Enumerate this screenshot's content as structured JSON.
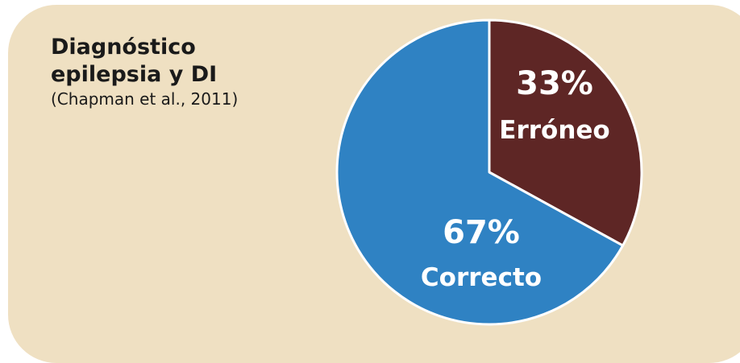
{
  "slide": {
    "title_line1": "Diagnóstico",
    "title_line2": "epilepsia y DI",
    "citation": "(Chapman et al., 2011)"
  },
  "chart_data": {
    "type": "pie",
    "title": "",
    "slices": [
      {
        "label": "Erróneo",
        "value": 33,
        "display": "33%",
        "color": "#5e2625"
      },
      {
        "label": "Correcto",
        "value": 67,
        "display": "67%",
        "color": "#2f82c3"
      }
    ],
    "start_angle_deg": 0,
    "direction": "clockwise"
  },
  "colors": {
    "card_background": "#efe0c2",
    "slice_border": "#ffffff",
    "label_text": "#ffffff"
  }
}
